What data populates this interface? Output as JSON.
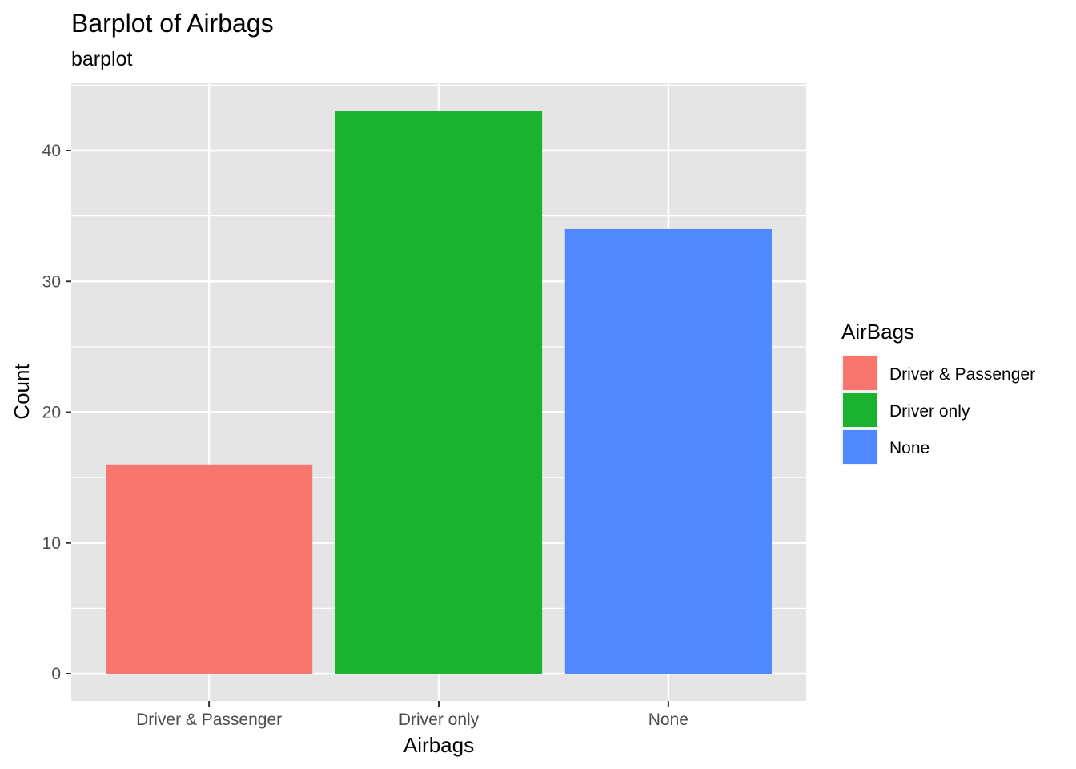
{
  "chart_data": {
    "type": "bar",
    "title": "Barplot of Airbags",
    "subtitle": "barplot",
    "xlabel": "Airbags",
    "ylabel": "Count",
    "categories": [
      "Driver & Passenger",
      "Driver only",
      "None"
    ],
    "values": [
      16,
      43,
      34
    ],
    "colors": [
      "#F8766D",
      "#1AB22E",
      "#4F88FF"
    ],
    "ylim": [
      0,
      45
    ],
    "yticks": [
      0,
      10,
      20,
      30,
      40
    ],
    "grid": true,
    "panel_background": "#e5e5e5",
    "legend": {
      "title": "AirBags",
      "placement": "right",
      "entries": [
        "Driver & Passenger",
        "Driver only",
        "None"
      ]
    }
  }
}
